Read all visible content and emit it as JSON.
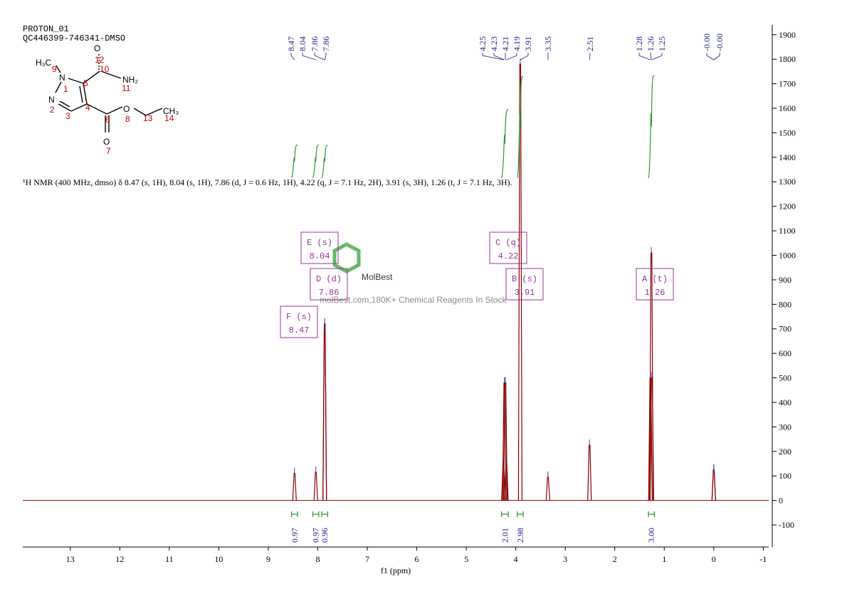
{
  "header": {
    "title": "PROTON_01",
    "subtitle": "QC446399-746341-DMSO"
  },
  "annotation": "¹H NMR (400 MHz, dmso) δ 8.47 (s, 1H), 8.04 (s, 1H), 7.86 (d, J = 0.6 Hz, 1H), 4.22 (q, J = 7.1 Hz, 2H), 3.91 (s, 3H), 1.26 (t, J = 7.1 Hz, 3H).",
  "watermark": {
    "brand": "MolBest",
    "tagline": "molBest.com,180K+ Chemical Reagents In Stock"
  },
  "structure": {
    "atoms": [
      "H₃C",
      "N",
      "N",
      "O",
      "NH₂",
      "O",
      "O",
      "CH₃"
    ],
    "numbers": [
      "9",
      "1",
      "2",
      "3",
      "4",
      "5",
      "6",
      "7",
      "8",
      "10",
      "11",
      "12",
      "13",
      "14"
    ]
  },
  "multiplets": [
    {
      "label": "E (s)",
      "shift": "8.04"
    },
    {
      "label": "D (d)",
      "shift": "7.86"
    },
    {
      "label": "F (s)",
      "shift": "8.47"
    },
    {
      "label": "C (q)",
      "shift": "4.22"
    },
    {
      "label": "B (s)",
      "shift": "3.91"
    },
    {
      "label": "A (t)",
      "shift": "1.26"
    }
  ],
  "chart_data": {
    "type": "nmr",
    "x_label": "f1 (ppm)",
    "x": [
      8.47,
      8.04,
      7.86,
      7.86,
      4.25,
      4.23,
      4.21,
      4.19,
      3.91,
      3.35,
      2.51,
      1.28,
      1.26,
      1.25,
      0,
      0
    ],
    "values": [
      110,
      115,
      720,
      700,
      150,
      480,
      480,
      150,
      1780,
      95,
      225,
      500,
      1010,
      500,
      125,
      120
    ],
    "value_labels": [
      "8.47",
      "8.04",
      "7.86",
      "7.86",
      "4.25",
      "4.23",
      "4.21",
      "4.19",
      "3.91",
      "3.35",
      "2.51",
      "1.28",
      "1.26",
      "1.25",
      "-0.00",
      "-0.00"
    ],
    "color": "#8b0000",
    "integrals": [
      {
        "from": 8.53,
        "to": 8.41,
        "value": 0.97
      },
      {
        "from": 8.1,
        "to": 7.98,
        "value": 0.97
      },
      {
        "from": 7.92,
        "to": 7.8,
        "value": 0.96
      },
      {
        "from": 4.29,
        "to": 4.15,
        "value": 2.01
      },
      {
        "from": 3.97,
        "to": 3.85,
        "value": 2.98
      },
      {
        "from": 1.32,
        "to": 1.2,
        "value": 3.0,
        "label": "3.00"
      }
    ],
    "integral_color": "#2a9a2a",
    "xlim": [
      13.96,
      -1.11
    ],
    "xticks": [
      13,
      12,
      11,
      10,
      9,
      8,
      7,
      6,
      5,
      4,
      3,
      2,
      1,
      0,
      -1
    ],
    "ylim": [
      -190,
      1940
    ],
    "yticks": [
      -100,
      0,
      100,
      200,
      300,
      400,
      500,
      600,
      700,
      800,
      900,
      1000,
      1100,
      1200,
      1300,
      1400,
      1500,
      1600,
      1700,
      1800,
      1900
    ]
  }
}
